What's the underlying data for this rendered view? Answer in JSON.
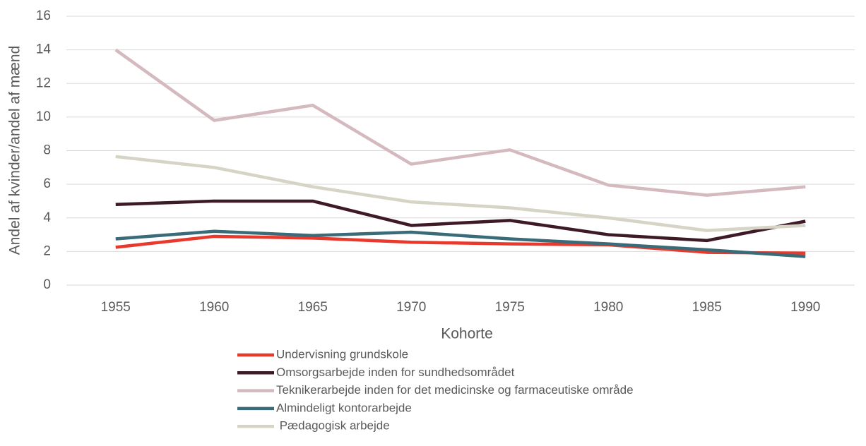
{
  "chart_data": {
    "type": "line",
    "y_label": "Andel af kvinder/andel af mænd",
    "x_label": "Kohorte",
    "categories": [
      "1955",
      "1960",
      "1965",
      "1970",
      "1975",
      "1980",
      "1985",
      "1990"
    ],
    "series": [
      {
        "name": "Undervisning grundskole",
        "color": "#e8392c",
        "values": [
          2.25,
          2.9,
          2.8,
          2.55,
          2.45,
          2.4,
          1.95,
          1.9
        ]
      },
      {
        "name": "Omsorgsarbejde inden for sundhedsområdet",
        "color": "#3d1a26",
        "values": [
          4.8,
          5.0,
          5.0,
          3.55,
          3.85,
          3.0,
          2.65,
          3.8
        ]
      },
      {
        "name": "Teknikerarbejde inden for det medicinske og farmaceutiske område",
        "color": "#d4b9be",
        "values": [
          14,
          9.8,
          10.7,
          7.2,
          8.05,
          5.95,
          5.35,
          5.85
        ]
      },
      {
        "name": "Almindeligt kontorarbejde",
        "color": "#3a6b78",
        "values": [
          2.75,
          3.2,
          2.95,
          3.15,
          2.75,
          2.45,
          2.1,
          1.7
        ]
      },
      {
        "name": " Pædagogisk arbejde",
        "color": "#d6d4c4",
        "values": [
          7.65,
          7.0,
          5.85,
          4.95,
          4.6,
          4.0,
          3.25,
          3.55
        ]
      }
    ],
    "ylim": [
      0,
      16
    ],
    "yticks": [
      0,
      2,
      4,
      6,
      8,
      10,
      12,
      14,
      16
    ],
    "grid": true,
    "legend": "bottom"
  }
}
